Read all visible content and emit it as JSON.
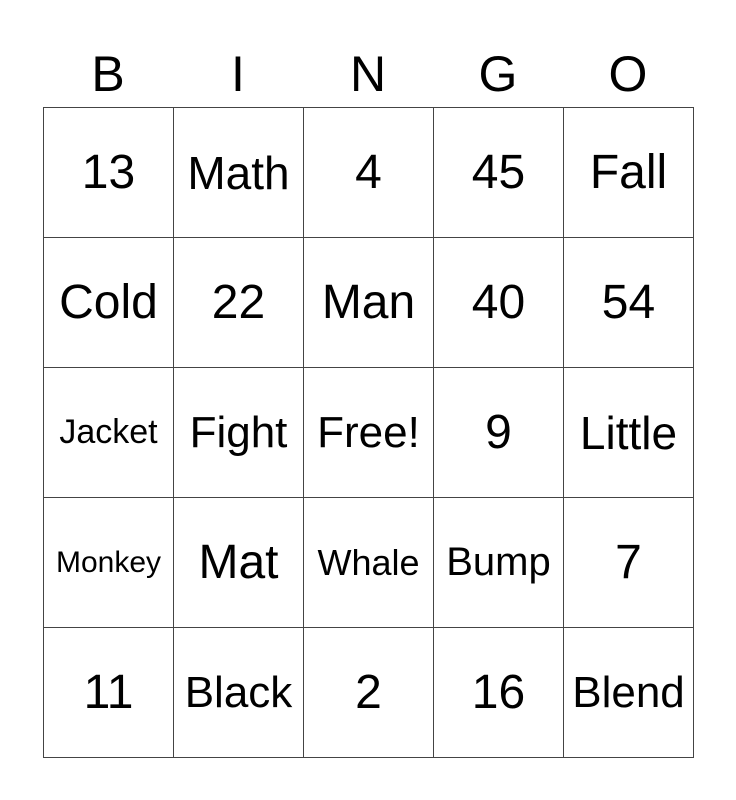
{
  "header": [
    "B",
    "I",
    "N",
    "G",
    "O"
  ],
  "rows": [
    [
      "13",
      "Math",
      "4",
      "45",
      "Fall"
    ],
    [
      "Cold",
      "22",
      "Man",
      "40",
      "54"
    ],
    [
      "Jacket",
      "Fight",
      "Free!",
      "9",
      "Little"
    ],
    [
      "Monkey",
      "Mat",
      "Whale",
      "Bump",
      "7"
    ],
    [
      "11",
      "Black",
      "2",
      "16",
      "Blend"
    ]
  ]
}
